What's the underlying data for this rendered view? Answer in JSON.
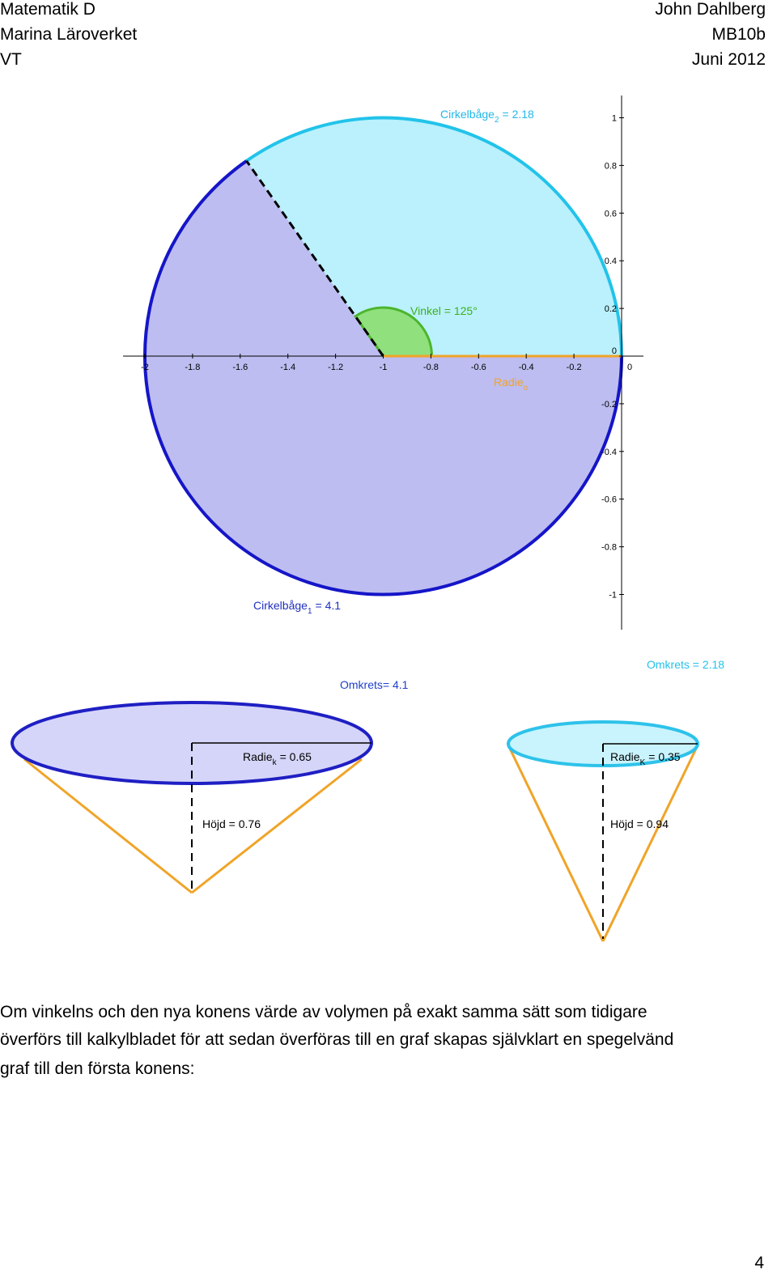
{
  "header": {
    "left": [
      "Matematik D",
      "Marina Läroverket",
      "VT"
    ],
    "right": [
      "John Dahlberg",
      "MB10b",
      "Juni 2012"
    ]
  },
  "figure": {
    "x_ticks": [
      -2,
      -1.8,
      -1.6,
      -1.4,
      -1.2,
      -1,
      -0.8,
      -0.6,
      -0.4,
      -0.2,
      0
    ],
    "y_ticks": [
      1,
      0.8,
      0.6,
      0.4,
      0.2,
      0,
      -0.2,
      -0.4,
      -0.6,
      -0.8,
      -1
    ],
    "arc_2": {
      "name": "Cirkelbåge",
      "sub": "2",
      "rest": "= 2.18"
    },
    "angle_label": "Vinkel = 125°",
    "radius_label": {
      "name": "Radie",
      "sub": "o"
    },
    "arc_1": {
      "name": "Cirkelbåge",
      "sub": "1",
      "rest": "= 4.1"
    },
    "cone_1": {
      "circumference": "Omkrets= 4.1",
      "radius": {
        "name": "Radie",
        "sub": "k",
        "rest": "= 0.65"
      },
      "height": "Höjd = 0.76"
    },
    "cone_2": {
      "circumference": "Omkrets = 2.18",
      "radius": {
        "name": "Radie",
        "sub": "K",
        "rest": "= 0.35"
      },
      "height": "Höjd = 0.94"
    }
  },
  "paragraph": [
    "Om vinkelns och den nya konens värde av volymen på exakt samma sätt som tidigare",
    "överförs till kalkylbladet för att sedan överföras till en graf skapas självklart en spegelvänd",
    "graf till den första konens:"
  ],
  "page_number": "4"
}
